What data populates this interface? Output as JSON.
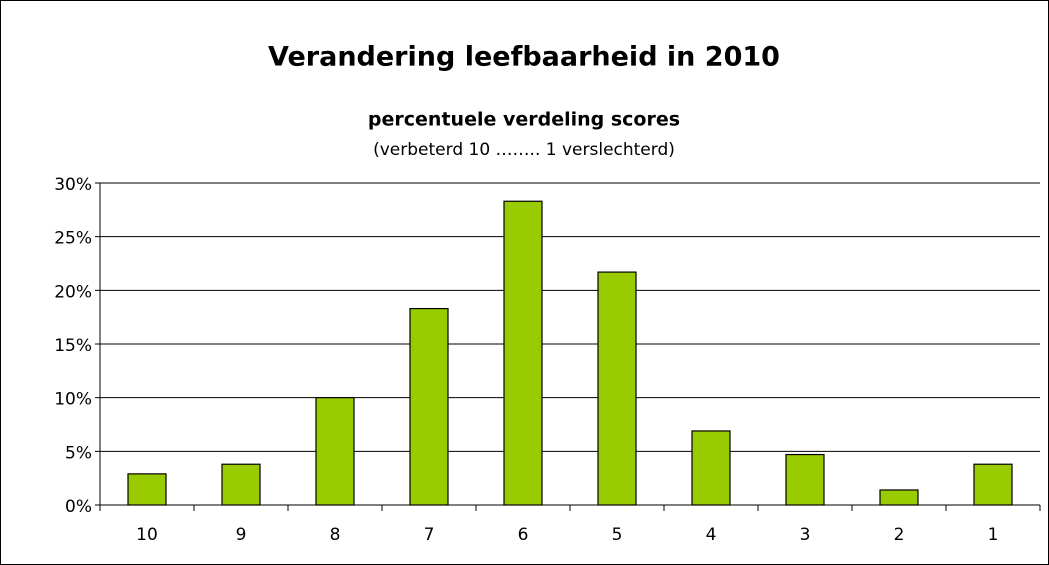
{
  "chart_data": {
    "type": "bar",
    "title": "Verandering leefbaarheid in 2010",
    "subtitle": "percentuele verdeling scores",
    "note": "(verbeterd 10  …….. 1 verslechterd)",
    "categories": [
      "10",
      "9",
      "8",
      "7",
      "6",
      "5",
      "4",
      "3",
      "2",
      "1"
    ],
    "values": [
      2.9,
      3.8,
      10.0,
      18.3,
      28.3,
      21.7,
      6.9,
      4.7,
      1.4,
      3.8
    ],
    "color": "#99cc00",
    "ylim": [
      0,
      30
    ],
    "yticks": [
      {
        "value": 0,
        "label": "0%"
      },
      {
        "value": 5,
        "label": "5%"
      },
      {
        "value": 10,
        "label": "10%"
      },
      {
        "value": 15,
        "label": "15%"
      },
      {
        "value": 20,
        "label": "20%"
      },
      {
        "value": 25,
        "label": "25%"
      },
      {
        "value": 30,
        "label": "30%"
      }
    ],
    "grid": true
  }
}
